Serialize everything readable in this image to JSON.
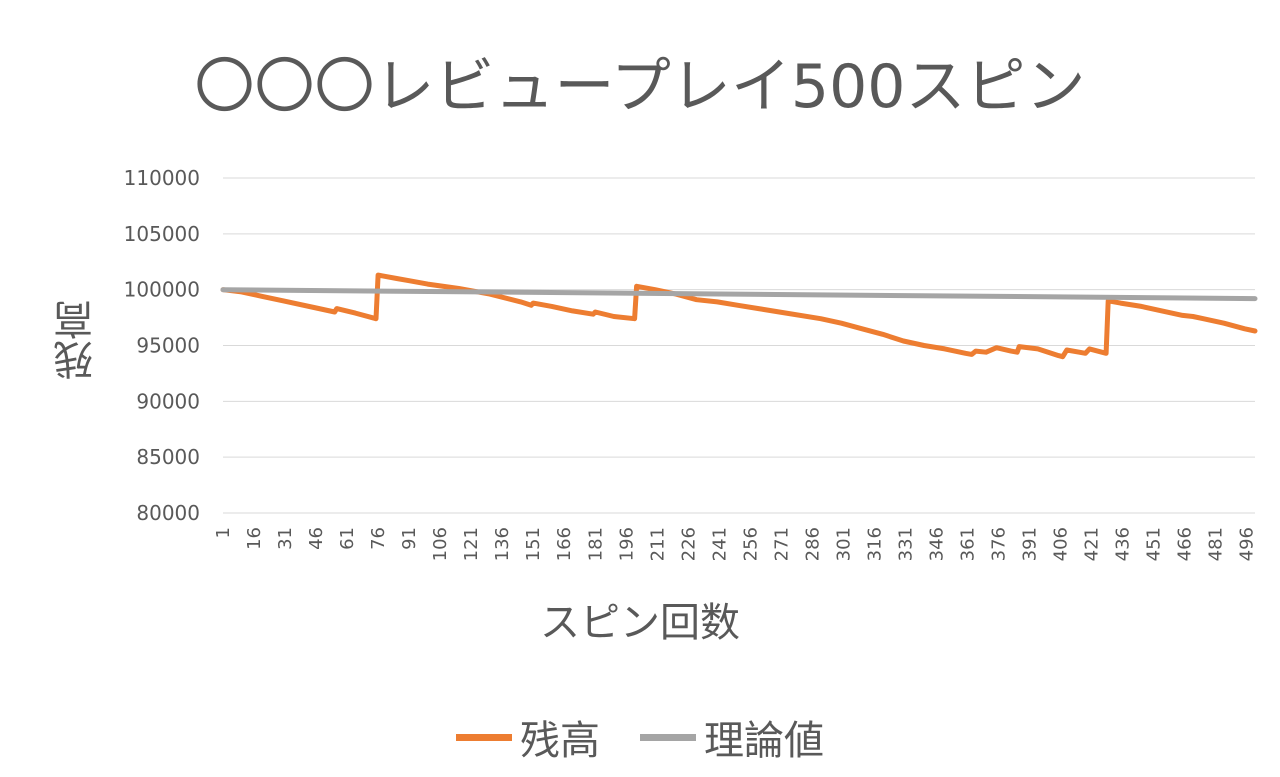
{
  "chart_data": {
    "type": "line",
    "title": "〇〇〇レビュープレイ500スピン",
    "xlabel": "スピン回数",
    "ylabel": "残高",
    "ylim": [
      80000,
      110000
    ],
    "yticks": [
      "80000",
      "85000",
      "90000",
      "95000",
      "100000",
      "105000",
      "110000"
    ],
    "xlim": [
      1,
      500
    ],
    "xticks": [
      "1",
      "16",
      "31",
      "46",
      "61",
      "76",
      "91",
      "106",
      "121",
      "136",
      "151",
      "166",
      "181",
      "196",
      "211",
      "226",
      "241",
      "256",
      "271",
      "286",
      "301",
      "316",
      "331",
      "346",
      "361",
      "376",
      "391",
      "406",
      "421",
      "436",
      "451",
      "466",
      "481",
      "496"
    ],
    "grid": true,
    "legend_position": "bottom",
    "series": [
      {
        "name": "残高",
        "color": "#ED7D31",
        "points": [
          [
            1,
            100000
          ],
          [
            10,
            99800
          ],
          [
            20,
            99400
          ],
          [
            30,
            99000
          ],
          [
            45,
            98400
          ],
          [
            55,
            98000
          ],
          [
            56,
            98300
          ],
          [
            65,
            97900
          ],
          [
            75,
            97400
          ],
          [
            76,
            101300
          ],
          [
            85,
            101000
          ],
          [
            91,
            100800
          ],
          [
            100,
            100500
          ],
          [
            115,
            100100
          ],
          [
            130,
            99600
          ],
          [
            145,
            98900
          ],
          [
            150,
            98600
          ],
          [
            151,
            98800
          ],
          [
            160,
            98500
          ],
          [
            170,
            98100
          ],
          [
            180,
            97800
          ],
          [
            181,
            98000
          ],
          [
            190,
            97600
          ],
          [
            200,
            97400
          ],
          [
            201,
            100300
          ],
          [
            210,
            100000
          ],
          [
            220,
            99600
          ],
          [
            230,
            99100
          ],
          [
            240,
            98900
          ],
          [
            250,
            98600
          ],
          [
            260,
            98300
          ],
          [
            270,
            98000
          ],
          [
            290,
            97400
          ],
          [
            300,
            97000
          ],
          [
            310,
            96500
          ],
          [
            320,
            96000
          ],
          [
            330,
            95400
          ],
          [
            340,
            95000
          ],
          [
            350,
            94700
          ],
          [
            360,
            94300
          ],
          [
            363,
            94200
          ],
          [
            365,
            94500
          ],
          [
            370,
            94400
          ],
          [
            375,
            94800
          ],
          [
            382,
            94500
          ],
          [
            385,
            94400
          ],
          [
            386,
            94900
          ],
          [
            395,
            94700
          ],
          [
            405,
            94100
          ],
          [
            407,
            94000
          ],
          [
            409,
            94600
          ],
          [
            415,
            94400
          ],
          [
            418,
            94300
          ],
          [
            420,
            94700
          ],
          [
            428,
            94300
          ],
          [
            429,
            99000
          ],
          [
            435,
            98800
          ],
          [
            445,
            98500
          ],
          [
            455,
            98100
          ],
          [
            465,
            97700
          ],
          [
            470,
            97600
          ],
          [
            475,
            97400
          ],
          [
            485,
            97000
          ],
          [
            495,
            96500
          ],
          [
            500,
            96300
          ]
        ]
      },
      {
        "name": "理論値",
        "color": "#A5A5A5",
        "points": [
          [
            1,
            100000
          ],
          [
            500,
            99200
          ]
        ]
      }
    ]
  }
}
